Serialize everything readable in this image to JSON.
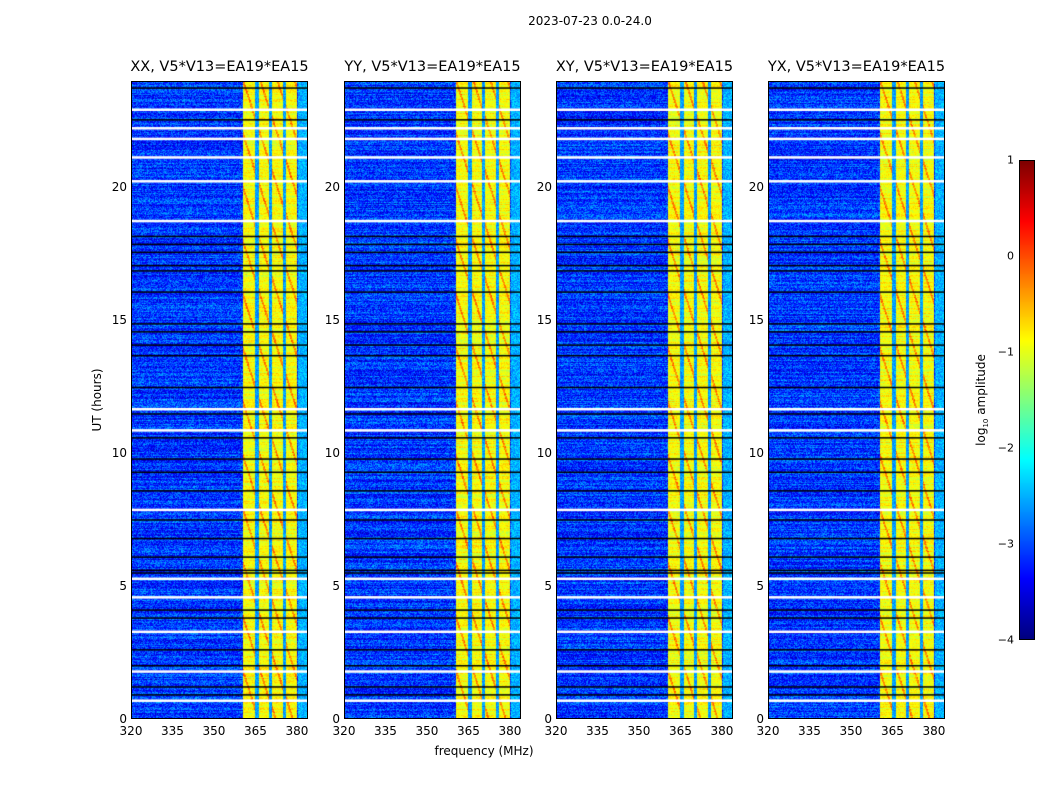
{
  "title": "2023-07-23 0.0-24.0",
  "chart_data": {
    "type": "heatmap",
    "panels": [
      {
        "title": "XX, V5*V13=EA19*EA15"
      },
      {
        "title": "YY, V5*V13=EA19*EA15"
      },
      {
        "title": "XY, V5*V13=EA19*EA15"
      },
      {
        "title": "YX, V5*V13=EA19*EA15"
      }
    ],
    "xlabel": "frequency (MHz)",
    "ylabel": "UT (hours)",
    "xlim": [
      320,
      384
    ],
    "ylim": [
      0,
      24
    ],
    "xticks": [
      "320",
      "335",
      "350",
      "365",
      "380"
    ],
    "xtick_values": [
      320,
      335,
      350,
      365,
      380
    ],
    "yticks": [
      "0",
      "5",
      "10",
      "15",
      "20"
    ],
    "ytick_values": [
      0,
      5,
      10,
      15,
      20
    ],
    "colorbar": {
      "label": "log10 amplitude",
      "label_main": "log",
      "label_sub": "10",
      "label_rest": " amplitude",
      "range": [
        -4,
        1
      ],
      "ticks": [
        "−4",
        "−3",
        "−2",
        "−1",
        "0",
        "1"
      ],
      "tick_values": [
        -4,
        -3,
        -2,
        -1,
        0,
        1
      ],
      "colormap": "jet"
    },
    "background_level": -3.1,
    "bright_band_mhz": [
      360.5,
      380
    ],
    "bright_band_level": -0.9,
    "subband_gaps_mhz": [
      365.5,
      370.5,
      375.5
    ],
    "flagged_hours_white": [
      23.0,
      22.3,
      21.9,
      21.2,
      20.3,
      18.8,
      11.7,
      10.9,
      7.9,
      5.3,
      4.6,
      3.3,
      1.8,
      0.7
    ],
    "flagged_hours_black": [
      23.8,
      22.6,
      18.2,
      17.9,
      17.6,
      17.1,
      16.9,
      16.1,
      14.9,
      14.6,
      14.1,
      13.7,
      12.5,
      11.5,
      10.6,
      9.8,
      9.3,
      8.6,
      7.5,
      6.8,
      6.1,
      5.6,
      5.5,
      4.1,
      3.8,
      2.6,
      2.0,
      1.2,
      0.9
    ]
  }
}
